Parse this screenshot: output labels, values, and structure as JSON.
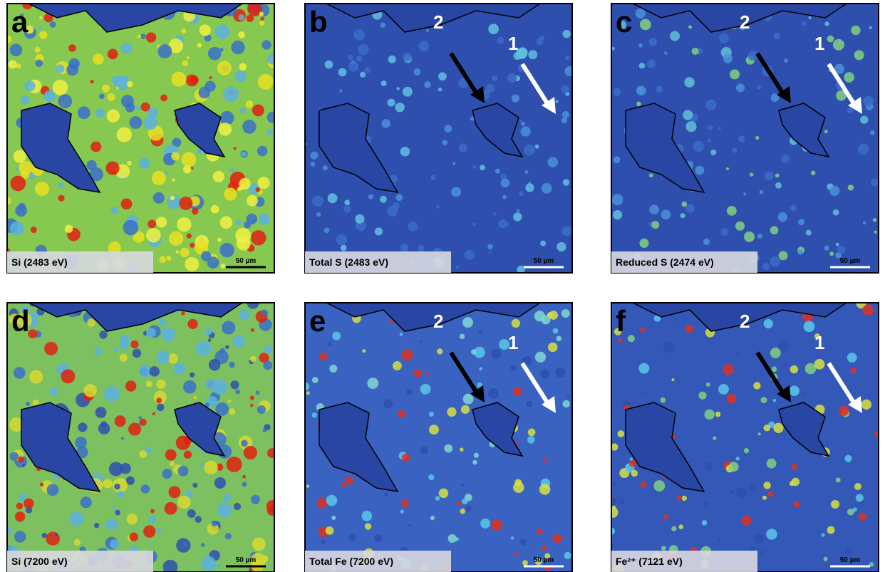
{
  "panels": [
    {
      "letter": "a",
      "caption": "Si (2483 eV)",
      "scale_bar": "50 µm",
      "markers": []
    },
    {
      "letter": "b",
      "caption": "Total S (2483 eV)",
      "scale_bar": "50 µm",
      "markers": [
        "2",
        "1"
      ]
    },
    {
      "letter": "c",
      "caption": "Reduced S (2474 eV)",
      "scale_bar": "50 µm",
      "markers": [
        "2",
        "1"
      ]
    },
    {
      "letter": "d",
      "caption": "Si (7200 eV)",
      "scale_bar": "50 µm",
      "markers": []
    },
    {
      "letter": "e",
      "caption": "Total Fe (7200 eV)",
      "scale_bar": "50 µm",
      "markers": [
        "2",
        "1"
      ]
    },
    {
      "letter": "f",
      "caption": "Fe²⁺ (7121 eV)",
      "scale_bar": "50 µm",
      "markers": [
        "2",
        "1"
      ]
    }
  ]
}
